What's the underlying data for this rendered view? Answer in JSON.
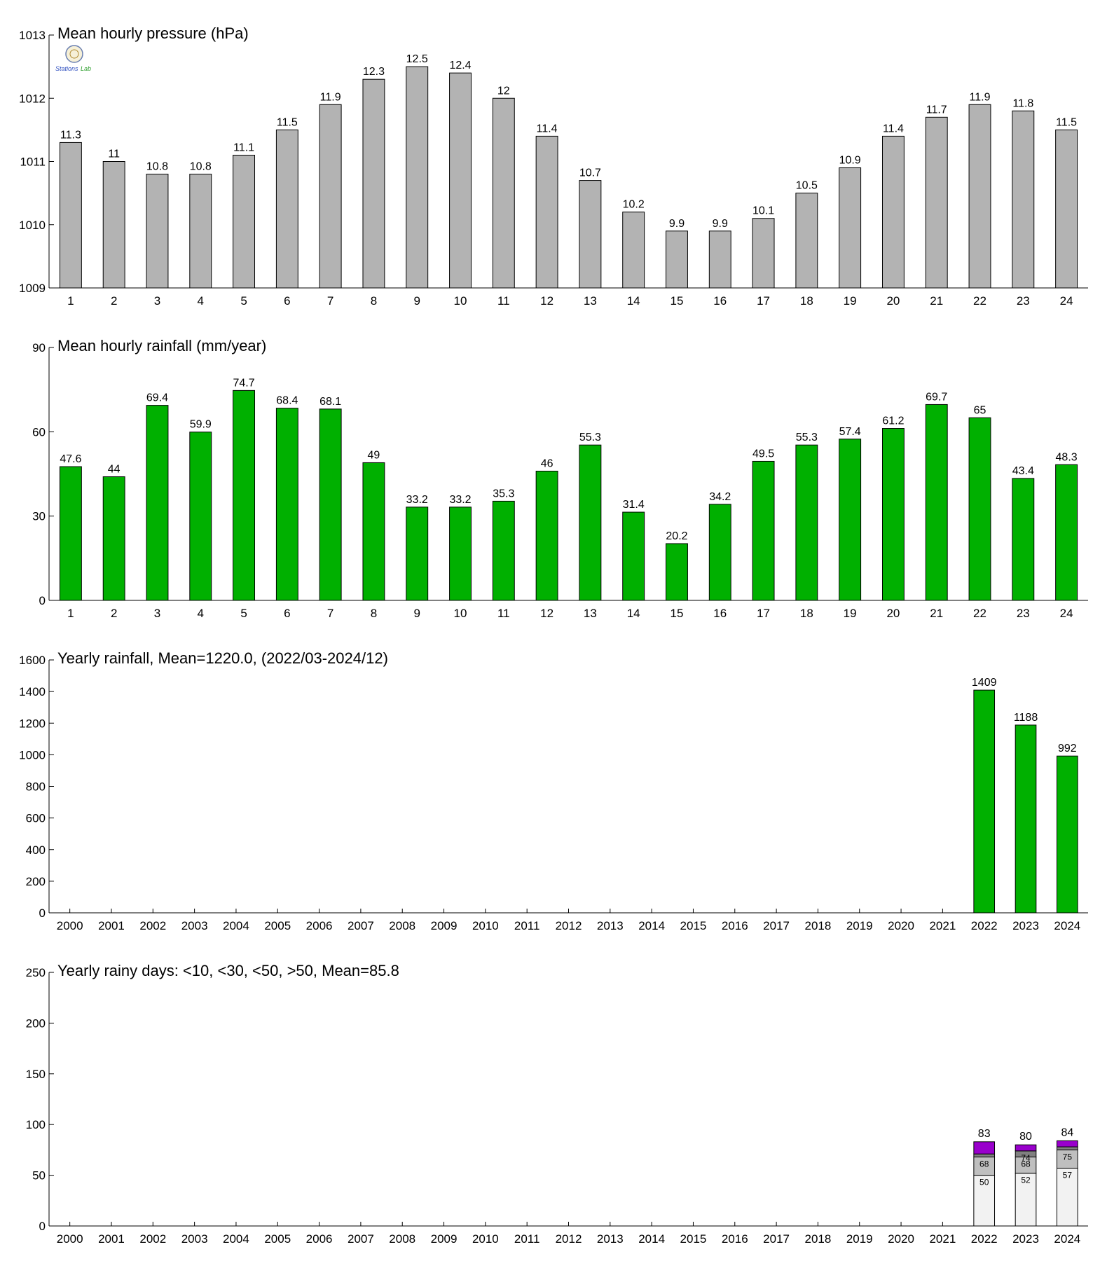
{
  "colors": {
    "pressure": "#b3b3b3",
    "rain": "#00b000",
    "seg1": "#f2f2f2",
    "seg2": "#bfbfbf",
    "seg3": "#808080",
    "seg4": "#9900cc"
  },
  "logo": {
    "text_a": "Stations",
    "text_b": "Lab",
    "icon": "seal-logo-icon"
  },
  "chart_data": [
    {
      "type": "bar",
      "title": "Mean hourly pressure (hPa)",
      "categories": [
        "1",
        "2",
        "3",
        "4",
        "5",
        "6",
        "7",
        "8",
        "9",
        "10",
        "11",
        "12",
        "13",
        "14",
        "15",
        "16",
        "17",
        "18",
        "19",
        "20",
        "21",
        "22",
        "23",
        "24"
      ],
      "values": [
        1011.3,
        1011.0,
        1010.8,
        1010.8,
        1011.1,
        1011.5,
        1011.9,
        1012.3,
        1012.5,
        1012.4,
        1012.0,
        1011.4,
        1010.7,
        1010.2,
        1009.9,
        1009.9,
        1010.1,
        1010.5,
        1010.9,
        1011.4,
        1011.7,
        1011.9,
        1011.8,
        1011.5
      ],
      "labels": [
        "11.3",
        "11",
        "10.8",
        "10.8",
        "11.1",
        "11.5",
        "11.9",
        "12.3",
        "12.5",
        "12.4",
        "12",
        "11.4",
        "10.7",
        "10.2",
        "9.9",
        "9.9",
        "10.1",
        "10.5",
        "10.9",
        "11.4",
        "11.7",
        "11.9",
        "11.8",
        "11.5"
      ],
      "ylim": [
        1009,
        1013
      ],
      "yticks": [
        "1009",
        "1010",
        "1011",
        "1012",
        "1013"
      ],
      "color": "#b3b3b3"
    },
    {
      "type": "bar",
      "title": "Mean hourly rainfall (mm/year)",
      "categories": [
        "1",
        "2",
        "3",
        "4",
        "5",
        "6",
        "7",
        "8",
        "9",
        "10",
        "11",
        "12",
        "13",
        "14",
        "15",
        "16",
        "17",
        "18",
        "19",
        "20",
        "21",
        "22",
        "23",
        "24"
      ],
      "values": [
        47.6,
        44,
        69.4,
        59.9,
        74.7,
        68.4,
        68.1,
        49,
        33.2,
        33.2,
        35.3,
        46,
        55.3,
        31.4,
        20.2,
        34.2,
        49.5,
        55.3,
        57.4,
        61.2,
        69.7,
        65,
        43.4,
        48.3
      ],
      "labels": [
        "47.6",
        "44",
        "69.4",
        "59.9",
        "74.7",
        "68.4",
        "68.1",
        "49",
        "33.2",
        "33.2",
        "35.3",
        "46",
        "55.3",
        "31.4",
        "20.2",
        "34.2",
        "49.5",
        "55.3",
        "57.4",
        "61.2",
        "69.7",
        "65",
        "43.4",
        "48.3"
      ],
      "ylim": [
        0,
        90
      ],
      "yticks": [
        "0",
        "30",
        "60",
        "90"
      ],
      "color": "#00b000"
    },
    {
      "type": "bar",
      "title": "Yearly rainfall, Mean=1220.0, (2022/03-2024/12)",
      "categories": [
        "2000",
        "2001",
        "2002",
        "2003",
        "2004",
        "2005",
        "2006",
        "2007",
        "2008",
        "2009",
        "2010",
        "2011",
        "2012",
        "2013",
        "2014",
        "2015",
        "2016",
        "2017",
        "2018",
        "2019",
        "2020",
        "2021",
        "2022",
        "2023",
        "2024"
      ],
      "values": [
        null,
        null,
        null,
        null,
        null,
        null,
        null,
        null,
        null,
        null,
        null,
        null,
        null,
        null,
        null,
        null,
        null,
        null,
        null,
        null,
        null,
        null,
        1409,
        1188,
        992
      ],
      "labels": [
        "",
        "",
        "",
        "",
        "",
        "",
        "",
        "",
        "",
        "",
        "",
        "",
        "",
        "",
        "",
        "",
        "",
        "",
        "",
        "",
        "",
        "",
        "1409",
        "1188",
        "992"
      ],
      "ylim": [
        0,
        1600
      ],
      "yticks": [
        "0",
        "200",
        "400",
        "600",
        "800",
        "1000",
        "1200",
        "1400",
        "1600"
      ],
      "color": "#00b000"
    },
    {
      "type": "bar",
      "stacked": true,
      "title": "Yearly rainy days: <10, <30, <50, >50, Mean=85.8",
      "categories": [
        "2000",
        "2001",
        "2002",
        "2003",
        "2004",
        "2005",
        "2006",
        "2007",
        "2008",
        "2009",
        "2010",
        "2011",
        "2012",
        "2013",
        "2014",
        "2015",
        "2016",
        "2017",
        "2018",
        "2019",
        "2020",
        "2021",
        "2022",
        "2023",
        "2024"
      ],
      "cumulative": [
        {
          "year": "2022",
          "levels": [
            50,
            68,
            71,
            83
          ],
          "seg_labels": [
            "50",
            "68",
            ""
          ],
          "total_label": "83"
        },
        {
          "year": "2023",
          "levels": [
            52,
            68,
            74,
            80
          ],
          "seg_labels": [
            "52",
            "68",
            "74"
          ],
          "total_label": "80"
        },
        {
          "year": "2024",
          "levels": [
            57,
            75,
            78,
            84
          ],
          "seg_labels": [
            "57",
            "75",
            ""
          ],
          "total_label": "84"
        }
      ],
      "ylim": [
        0,
        250
      ],
      "yticks": [
        "0",
        "50",
        "100",
        "150",
        "200",
        "250"
      ]
    }
  ]
}
